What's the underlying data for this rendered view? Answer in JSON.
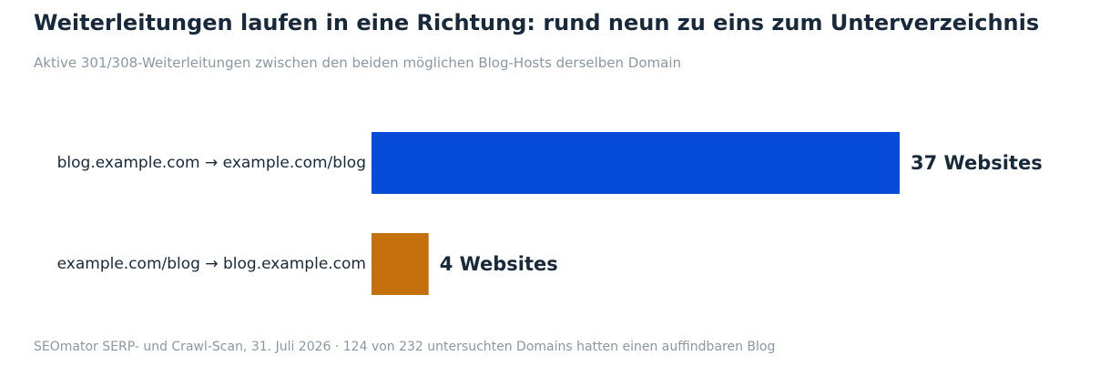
{
  "chart_data": {
    "type": "bar",
    "orientation": "horizontal",
    "title": "Weiterleitungen laufen in eine Richtung: rund neun zu eins zum Unterverzeichnis",
    "subtitle": "Aktive 301/308-Weiterleitungen zwischen den beiden möglichen Blog-Hosts derselben Domain",
    "categories": [
      "blog.example.com → example.com/blog",
      "example.com/blog → blog.example.com"
    ],
    "values": [
      37,
      4
    ],
    "value_labels": [
      "37 Websites",
      "4 Websites"
    ],
    "bar_colors": [
      "#074cd9",
      "#c4700c"
    ],
    "xlim": [
      0,
      37
    ],
    "grid": false,
    "legend": "none",
    "source": "SEOmator SERP- und Crawl-Scan, 31. Juli 2026 · 124 von 232 untersuchten Domains hatten einen auffindbaren Blog"
  }
}
